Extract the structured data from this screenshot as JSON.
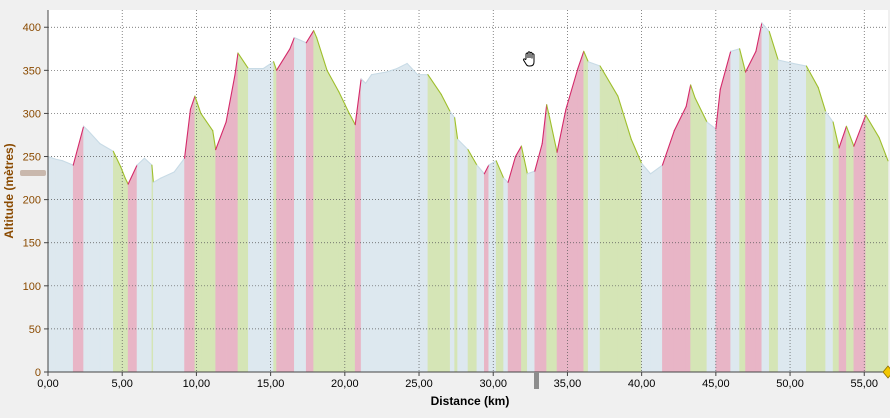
{
  "chart_data": {
    "type": "area",
    "xlabel": "Distance (km)",
    "ylabel": "Altitude (mètres)",
    "xlim": [
      0,
      56.6
    ],
    "ylim": [
      0,
      420
    ],
    "x_ticks": [
      0,
      5,
      10,
      15,
      20,
      25,
      30,
      35,
      40,
      45,
      50,
      55
    ],
    "x_tick_labels": [
      "0,00",
      "5,00",
      "10,00",
      "15,00",
      "20,00",
      "25,00",
      "30,00",
      "35,00",
      "40,00",
      "45,00",
      "50,00",
      "55,00"
    ],
    "y_ticks": [
      0,
      50,
      100,
      150,
      200,
      250,
      300,
      350,
      400
    ],
    "y_tick_labels": [
      "0",
      "50",
      "100",
      "150",
      "200",
      "250",
      "300",
      "350",
      "400"
    ],
    "grid": true,
    "colors": {
      "climb": "#e8b5c6",
      "climb_line": "#d42a6a",
      "descent": "#d5e5b6",
      "descent_line": "#9fbf2c",
      "flat": "#dde8ef",
      "flat_line": "#c8dbe6",
      "axis_label": "#8a4a00",
      "grid": "#555555"
    },
    "profile": [
      [
        0.0,
        250
      ],
      [
        0.5,
        247
      ],
      [
        1.0,
        245
      ],
      [
        1.7,
        240
      ],
      [
        2.4,
        285
      ],
      [
        2.7,
        280
      ],
      [
        3.5,
        265
      ],
      [
        4.4,
        256
      ],
      [
        4.9,
        238
      ],
      [
        5.2,
        225
      ],
      [
        5.4,
        218
      ],
      [
        6.0,
        240
      ],
      [
        6.5,
        248
      ],
      [
        7.0,
        240
      ],
      [
        7.1,
        220
      ],
      [
        7.6,
        225
      ],
      [
        8.5,
        232
      ],
      [
        9.2,
        248
      ],
      [
        9.6,
        305
      ],
      [
        9.9,
        320
      ],
      [
        10.3,
        300
      ],
      [
        11.1,
        280
      ],
      [
        11.3,
        258
      ],
      [
        12.0,
        290
      ],
      [
        12.6,
        345
      ],
      [
        12.8,
        370
      ],
      [
        13.5,
        352
      ],
      [
        14.5,
        352
      ],
      [
        15.2,
        360
      ],
      [
        15.4,
        350
      ],
      [
        16.3,
        375
      ],
      [
        16.6,
        388
      ],
      [
        17.4,
        382
      ],
      [
        17.9,
        396
      ],
      [
        18.1,
        388
      ],
      [
        18.8,
        350
      ],
      [
        19.6,
        325
      ],
      [
        20.3,
        300
      ],
      [
        20.7,
        287
      ],
      [
        21.1,
        340
      ],
      [
        21.4,
        335
      ],
      [
        21.8,
        345
      ],
      [
        22.8,
        348
      ],
      [
        23.5,
        352
      ],
      [
        24.2,
        358
      ],
      [
        24.9,
        345
      ],
      [
        25.6,
        345
      ],
      [
        26.5,
        322
      ],
      [
        27.1,
        302
      ],
      [
        27.4,
        295
      ],
      [
        27.6,
        270
      ],
      [
        28.3,
        258
      ],
      [
        28.9,
        240
      ],
      [
        29.4,
        230
      ],
      [
        29.7,
        240
      ],
      [
        30.2,
        245
      ],
      [
        30.7,
        225
      ],
      [
        31.0,
        220
      ],
      [
        31.5,
        250
      ],
      [
        31.9,
        262
      ],
      [
        32.3,
        230
      ],
      [
        32.8,
        233
      ],
      [
        33.3,
        265
      ],
      [
        33.6,
        310
      ],
      [
        33.8,
        295
      ],
      [
        34.3,
        255
      ],
      [
        34.9,
        305
      ],
      [
        35.7,
        352
      ],
      [
        36.1,
        372
      ],
      [
        36.4,
        360
      ],
      [
        37.2,
        355
      ],
      [
        38.4,
        320
      ],
      [
        39.3,
        270
      ],
      [
        40.0,
        242
      ],
      [
        40.6,
        230
      ],
      [
        41.4,
        240
      ],
      [
        42.2,
        280
      ],
      [
        43.0,
        308
      ],
      [
        43.3,
        333
      ],
      [
        43.6,
        318
      ],
      [
        44.4,
        290
      ],
      [
        45.0,
        282
      ],
      [
        45.3,
        328
      ],
      [
        46.0,
        372
      ],
      [
        46.6,
        375
      ],
      [
        47.0,
        348
      ],
      [
        47.7,
        372
      ],
      [
        48.1,
        405
      ],
      [
        48.6,
        395
      ],
      [
        49.2,
        362
      ],
      [
        50.2,
        358
      ],
      [
        51.1,
        355
      ],
      [
        51.9,
        330
      ],
      [
        52.4,
        302
      ],
      [
        52.9,
        290
      ],
      [
        53.3,
        260
      ],
      [
        53.8,
        285
      ],
      [
        54.3,
        262
      ],
      [
        55.1,
        298
      ],
      [
        56.0,
        272
      ],
      [
        56.6,
        245
      ]
    ]
  }
}
